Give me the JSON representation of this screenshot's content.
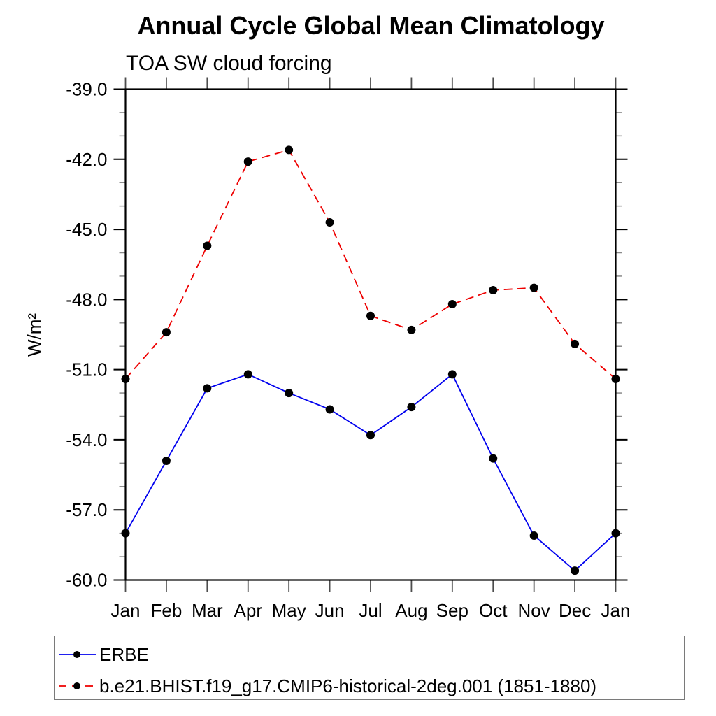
{
  "header": {
    "title": "Annual Cycle Global Mean Climatology",
    "subtitle": "TOA SW cloud forcing"
  },
  "y_axis": {
    "label": "W/m²",
    "tick_labels": [
      "-39.0",
      "-42.0",
      "-45.0",
      "-48.0",
      "-51.0",
      "-54.0",
      "-57.0",
      "-60.0"
    ],
    "min": -60.0,
    "max": -39.0,
    "major_step": 3.0,
    "minor_step": 1.0
  },
  "x_axis": {
    "tick_labels": [
      "Jan",
      "Feb",
      "Mar",
      "Apr",
      "May",
      "Jun",
      "Jul",
      "Aug",
      "Sep",
      "Oct",
      "Nov",
      "Dec",
      "Jan"
    ]
  },
  "chart_data": {
    "type": "line",
    "title": "Annual Cycle Global Mean Climatology",
    "subtitle": "TOA SW cloud forcing",
    "ylabel": "W/m²",
    "ylim": [
      -60.0,
      -39.0
    ],
    "y_major_ticks": [
      -39.0,
      -42.0,
      -45.0,
      -48.0,
      -51.0,
      -54.0,
      -57.0,
      -60.0
    ],
    "y_minor_step": 1.0,
    "grid": false,
    "legend_position": "bottom",
    "categories": [
      "Jan",
      "Feb",
      "Mar",
      "Apr",
      "May",
      "Jun",
      "Jul",
      "Aug",
      "Sep",
      "Oct",
      "Nov",
      "Dec",
      "Jan"
    ],
    "series": [
      {
        "name": "ERBE",
        "color": "#0000ee",
        "line_style": "solid",
        "marker": "filled-circle",
        "marker_color": "#000000",
        "values": [
          -58.0,
          -54.9,
          -51.8,
          -51.2,
          -52.0,
          -52.7,
          -53.8,
          -52.6,
          -51.2,
          -54.8,
          -58.1,
          -59.6,
          -58.0
        ]
      },
      {
        "name": "b.e21.BHIST.f19_g17.CMIP6-historical-2deg.001 (1851-1880)",
        "color": "#ee0000",
        "line_style": "dashed",
        "marker": "filled-circle",
        "marker_color": "#000000",
        "values": [
          -51.4,
          -49.4,
          -45.7,
          -42.1,
          -41.6,
          -44.7,
          -48.7,
          -49.3,
          -48.2,
          -47.6,
          -47.5,
          -49.9,
          -51.4
        ]
      }
    ]
  }
}
